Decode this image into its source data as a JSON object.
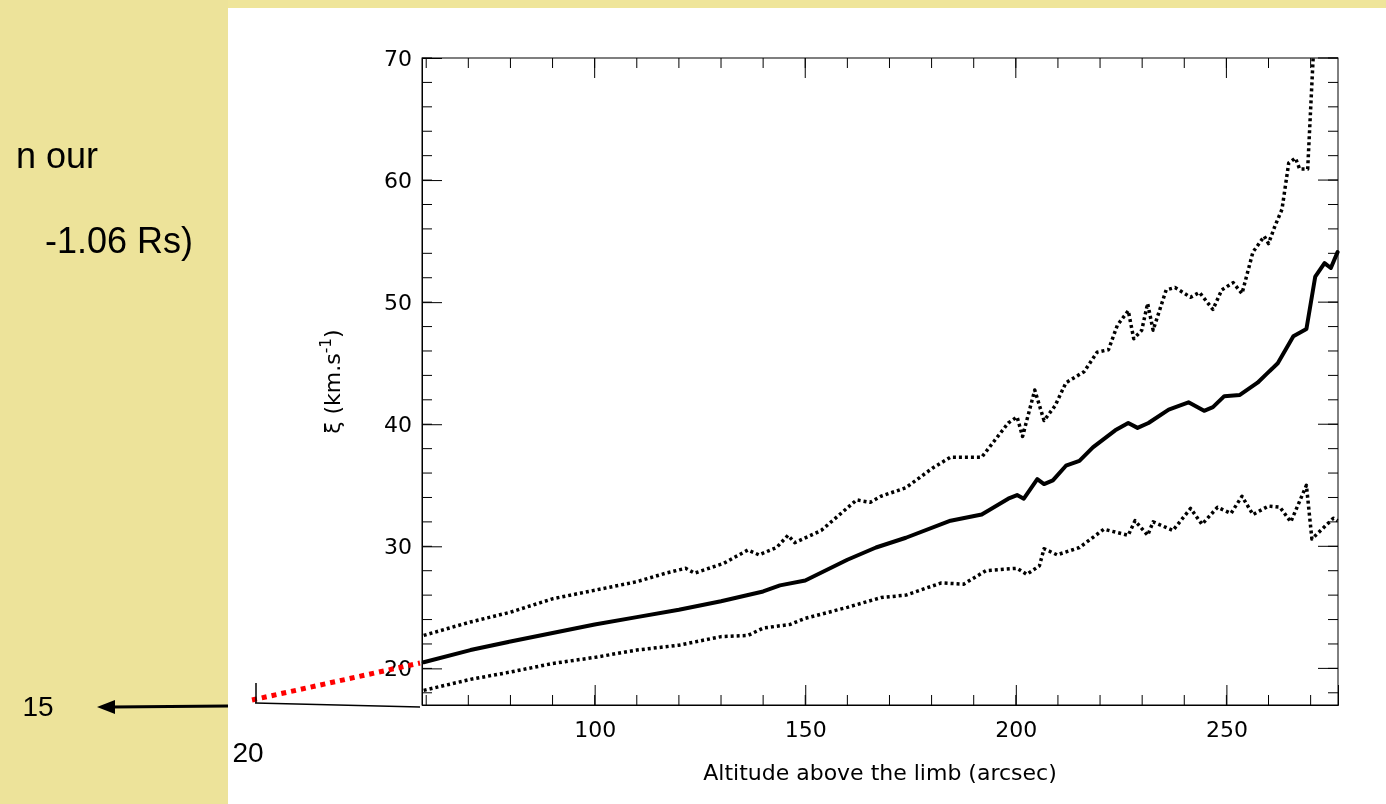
{
  "chart_data": {
    "type": "line",
    "xlabel": "Altitude above the limb (arcsec)",
    "ylabel": "ξ (km.s$^{-1}$)",
    "xlim": [
      59,
      276.5
    ],
    "ylim": [
      17,
      70
    ],
    "xticks": [
      100,
      150,
      200,
      250
    ],
    "yticks": [
      20,
      30,
      40,
      50,
      60,
      70
    ],
    "marker": "none",
    "annotations": [
      "n our",
      "-1.06 Rs)",
      "15",
      "20"
    ],
    "series": [
      {
        "color": "#000000",
        "line_style": "dotted",
        "x": [
          59.4,
          70.5,
          80,
          90,
          100,
          110,
          116.9,
          121.6,
          123.7,
          130.6,
          136.4,
          139,
          143.2,
          145.9,
          147.5,
          153.8,
          162.2,
          165.4,
          168,
          173.9,
          180.2,
          184.5,
          191.9,
          198.2,
          200.3,
          201.6,
          204.5,
          206.7,
          209.3,
          211.9,
          216.2,
          219.3,
          222,
          224.1,
          226.7,
          228,
          229.9,
          231.3,
          232.6,
          235.7,
          237.8,
          241.5,
          243.6,
          246.8,
          248.9,
          251.6,
          253.7,
          256.3,
          259,
          260,
          261.6,
          263.2,
          264.8,
          266.4,
          267.4,
          269.3,
          270.6
        ],
        "values": [
          22.7,
          23.8,
          24.6,
          25.7,
          26.4,
          27.1,
          27.8,
          28.2,
          27.8,
          28.6,
          29.7,
          29.3,
          29.9,
          30.9,
          30.3,
          31.3,
          33.8,
          33.6,
          34.1,
          34.8,
          36.4,
          37.3,
          37.3,
          40.1,
          40.6,
          39.0,
          42.8,
          40.3,
          41.5,
          43.4,
          44.3,
          45.9,
          46.1,
          48.1,
          49.3,
          47.0,
          47.7,
          49.9,
          47.7,
          51.0,
          51.2,
          50.4,
          50.8,
          49.4,
          51.0,
          51.6,
          50.7,
          54.1,
          55.4,
          54.8,
          56.3,
          57.6,
          61.4,
          61.8,
          60.9,
          60.9,
          70
        ]
      },
      {
        "color": "#000000",
        "line_style": "solid",
        "x": [
          59.4,
          70.5,
          80,
          90,
          100,
          110,
          120,
          130,
          140,
          144,
          150,
          160,
          166.8,
          173.9,
          184.5,
          191.9,
          198.2,
          200.3,
          201.9,
          205.1,
          206.7,
          208.8,
          211.9,
          215.1,
          218.3,
          223.6,
          226.7,
          228.9,
          231.5,
          236.3,
          241,
          244.7,
          246.8,
          249.5,
          253.2,
          257.4,
          259.5,
          262.2,
          265.9,
          269,
          271.1,
          273.3,
          274.8,
          276.4
        ],
        "values": [
          20.5,
          21.5,
          22.2,
          22.9,
          23.6,
          24.2,
          24.8,
          25.5,
          26.3,
          26.8,
          27.2,
          28.9,
          29.9,
          30.7,
          32.1,
          32.6,
          33.9,
          34.2,
          33.9,
          35.5,
          35.1,
          35.4,
          36.6,
          37.0,
          38.1,
          39.5,
          40.1,
          39.7,
          40.1,
          41.2,
          41.8,
          41.1,
          41.4,
          42.3,
          42.4,
          43.4,
          44.1,
          45.0,
          47.2,
          47.8,
          52.1,
          53.2,
          52.8,
          54.1
        ]
      },
      {
        "color": "#000000",
        "line_style": "dotted",
        "x": [
          59.4,
          70.5,
          80,
          90,
          100,
          110,
          120,
          130,
          136.4,
          140,
          146.4,
          150,
          160,
          168,
          173.9,
          182.3,
          187.6,
          192.9,
          200.3,
          202.6,
          205.6,
          206.7,
          209.8,
          215.1,
          220.9,
          226.7,
          228.3,
          231.3,
          232.6,
          237.3,
          241.5,
          244.2,
          247.9,
          251.1,
          253.7,
          256.3,
          260,
          262.7,
          265.3,
          269,
          270.3,
          275.4,
          276.4
        ],
        "values": [
          18.2,
          19.1,
          19.7,
          20.4,
          20.9,
          21.5,
          21.9,
          22.6,
          22.7,
          23.3,
          23.6,
          24.1,
          25.0,
          25.8,
          26.0,
          27.0,
          26.9,
          28.0,
          28.2,
          27.7,
          28.4,
          29.8,
          29.3,
          29.9,
          31.4,
          30.9,
          32.1,
          30.9,
          32.0,
          31.3,
          33.1,
          31.8,
          33.2,
          32.7,
          34.1,
          32.6,
          33.3,
          33.2,
          32.0,
          35.0,
          30.6,
          32.3,
          32.1
        ]
      }
    ]
  }
}
